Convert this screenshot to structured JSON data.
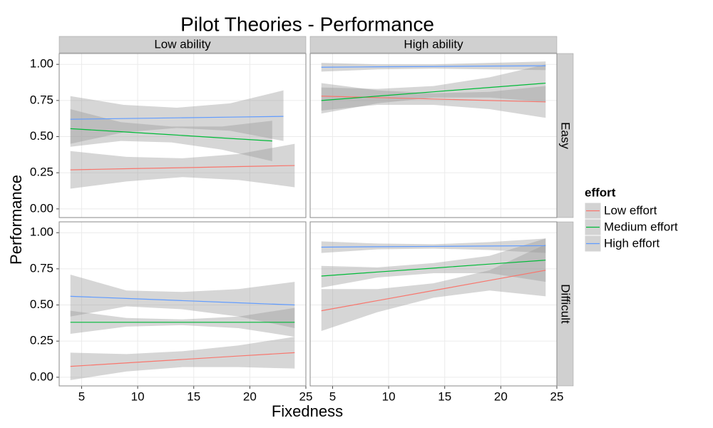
{
  "chart_data": {
    "type": "line",
    "title": "Pilot Theories - Performance",
    "x_label": "Fixedness",
    "y_label": "Performance",
    "legend_title": "effort",
    "column_labels": [
      "Low ability",
      "High ability"
    ],
    "row_labels": [
      "Easy",
      "Difficult"
    ],
    "xlim": [
      3,
      25
    ],
    "xticks": [
      5,
      10,
      15,
      20,
      25
    ],
    "ylim": [
      -0.06,
      1.075
    ],
    "yticks": [
      {
        "value": 0,
        "label": "0.00"
      },
      {
        "value": 0.25,
        "label": "0.25"
      },
      {
        "value": 0.5,
        "label": "0.50"
      },
      {
        "value": 0.75,
        "label": "0.75"
      },
      {
        "value": 1,
        "label": "1.00"
      }
    ],
    "grid": true,
    "band_color": "#999999",
    "panels": [
      {
        "series": [
          {
            "name": "Low effort",
            "color": "#f8766d",
            "x": [
              4,
              9,
              14,
              19,
              24
            ],
            "values": [
              0.27,
              0.278,
              0.285,
              0.293,
              0.3
            ],
            "lower": [
              0.14,
              0.19,
              0.22,
              0.2,
              0.15
            ],
            "upper": [
              0.4,
              0.36,
              0.35,
              0.38,
              0.45
            ]
          },
          {
            "name": "Medium effort",
            "color": "#00ba38",
            "x": [
              4,
              8.5,
              13,
              17.5,
              22
            ],
            "values": [
              0.555,
              0.534,
              0.513,
              0.491,
              0.47
            ],
            "lower": [
              0.43,
              0.47,
              0.46,
              0.41,
              0.33
            ],
            "upper": [
              0.69,
              0.6,
              0.57,
              0.57,
              0.61
            ]
          },
          {
            "name": "High effort",
            "color": "#619cff",
            "x": [
              4,
              8.75,
              13.5,
              18.25,
              23
            ],
            "values": [
              0.62,
              0.625,
              0.63,
              0.635,
              0.64
            ],
            "lower": [
              0.45,
              0.53,
              0.56,
              0.54,
              0.47
            ],
            "upper": [
              0.78,
              0.72,
              0.7,
              0.73,
              0.82
            ]
          }
        ]
      },
      {
        "series": [
          {
            "name": "Low effort",
            "color": "#f8766d",
            "x": [
              4,
              9,
              14,
              19,
              24
            ],
            "values": [
              0.78,
              0.77,
              0.76,
              0.75,
              0.74
            ],
            "lower": [
              0.68,
              0.72,
              0.72,
              0.69,
              0.63
            ],
            "upper": [
              0.87,
              0.82,
              0.8,
              0.81,
              0.85
            ]
          },
          {
            "name": "Medium effort",
            "color": "#00ba38",
            "x": [
              4,
              9,
              14,
              19,
              24
            ],
            "values": [
              0.75,
              0.78,
              0.81,
              0.84,
              0.87
            ],
            "lower": [
              0.66,
              0.73,
              0.77,
              0.77,
              0.74
            ],
            "upper": [
              0.84,
              0.83,
              0.85,
              0.91,
              1.0
            ]
          },
          {
            "name": "High effort",
            "color": "#619cff",
            "x": [
              4,
              9,
              14,
              19,
              24
            ],
            "values": [
              0.98,
              0.983,
              0.985,
              0.988,
              0.99
            ],
            "lower": [
              0.95,
              0.965,
              0.97,
              0.965,
              0.96
            ],
            "upper": [
              1.01,
              1.0,
              1.0,
              1.01,
              1.02
            ]
          }
        ]
      },
      {
        "series": [
          {
            "name": "Low effort",
            "color": "#f8766d",
            "x": [
              4,
              9,
              14,
              19,
              24
            ],
            "values": [
              0.075,
              0.099,
              0.123,
              0.147,
              0.17
            ],
            "lower": [
              -0.02,
              0.04,
              0.07,
              0.07,
              0.06
            ],
            "upper": [
              0.17,
              0.16,
              0.18,
              0.22,
              0.28
            ]
          },
          {
            "name": "Medium effort",
            "color": "#00ba38",
            "x": [
              4,
              9,
              14,
              19,
              24
            ],
            "values": [
              0.38,
              0.38,
              0.38,
              0.38,
              0.38
            ],
            "lower": [
              0.3,
              0.35,
              0.36,
              0.34,
              0.28
            ],
            "upper": [
              0.46,
              0.41,
              0.4,
              0.42,
              0.48
            ]
          },
          {
            "name": "High effort",
            "color": "#619cff",
            "x": [
              4,
              9,
              14,
              19,
              24
            ],
            "values": [
              0.56,
              0.545,
              0.53,
              0.515,
              0.5
            ],
            "lower": [
              0.42,
              0.49,
              0.47,
              0.42,
              0.34
            ],
            "upper": [
              0.71,
              0.6,
              0.59,
              0.61,
              0.66
            ]
          }
        ]
      },
      {
        "series": [
          {
            "name": "Low effort",
            "color": "#f8766d",
            "x": [
              4,
              9,
              14,
              19,
              24
            ],
            "values": [
              0.46,
              0.53,
              0.6,
              0.67,
              0.74
            ],
            "lower": [
              0.32,
              0.45,
              0.55,
              0.6,
              0.56
            ],
            "upper": [
              0.61,
              0.61,
              0.65,
              0.74,
              0.92
            ]
          },
          {
            "name": "Medium effort",
            "color": "#00ba38",
            "x": [
              4,
              9,
              14,
              19,
              24
            ],
            "values": [
              0.7,
              0.728,
              0.755,
              0.783,
              0.81
            ],
            "lower": [
              0.62,
              0.69,
              0.72,
              0.72,
              0.66
            ],
            "upper": [
              0.77,
              0.76,
              0.79,
              0.84,
              0.96
            ]
          },
          {
            "name": "High effort",
            "color": "#619cff",
            "x": [
              4,
              9,
              14,
              19,
              24
            ],
            "values": [
              0.9,
              0.903,
              0.905,
              0.908,
              0.91
            ],
            "lower": [
              0.86,
              0.885,
              0.89,
              0.88,
              0.86
            ],
            "upper": [
              0.94,
              0.925,
              0.92,
              0.935,
              0.96
            ]
          }
        ]
      }
    ]
  }
}
